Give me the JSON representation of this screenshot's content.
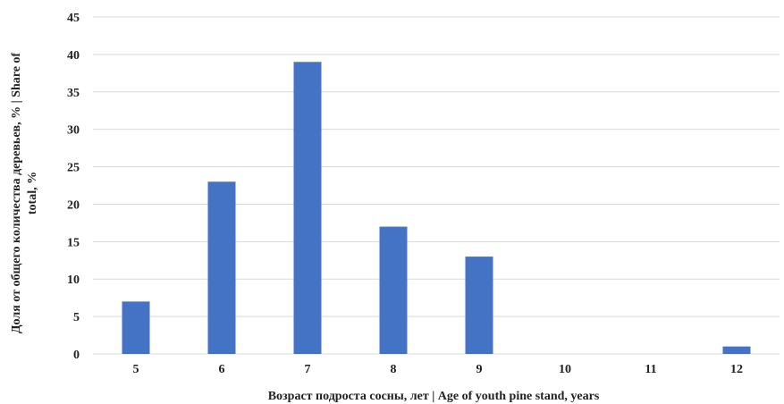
{
  "chart_data": {
    "type": "bar",
    "title": "",
    "xlabel": "Возраст подроста сосны, лет | Age of youth pine stand, years",
    "ylabel": [
      "Доля от общего количества деревьев, % | Share of",
      "total, %"
    ],
    "categories": [
      "5",
      "6",
      "7",
      "8",
      "9",
      "10",
      "11",
      "12"
    ],
    "series": [
      {
        "values": [
          7,
          23,
          39,
          17,
          13,
          0,
          0,
          1
        ]
      }
    ],
    "ylim": [
      0,
      45
    ],
    "yticks": [
      0,
      5,
      10,
      15,
      20,
      25,
      30,
      35,
      40,
      45
    ],
    "grid": true,
    "legend": "none",
    "bar_color": "#4472c4",
    "grid_color": "#d9d9d9"
  }
}
